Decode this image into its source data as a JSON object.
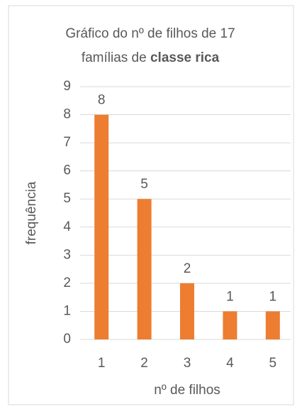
{
  "chart_data": {
    "type": "bar",
    "title_lines": [
      "Gráfico do nº de filhos de 17",
      "famílias de"
    ],
    "title_bold": "classe rica",
    "x_label": "nº de filhos",
    "y_label": "frequência",
    "categories": [
      "1",
      "2",
      "3",
      "4",
      "5"
    ],
    "values": [
      8,
      5,
      2,
      1,
      1
    ],
    "color": "#ed7d31",
    "ylim": [
      0,
      9
    ],
    "yticks": [
      0,
      1,
      2,
      3,
      4,
      5,
      6,
      7,
      8,
      9
    ],
    "grid": true
  }
}
